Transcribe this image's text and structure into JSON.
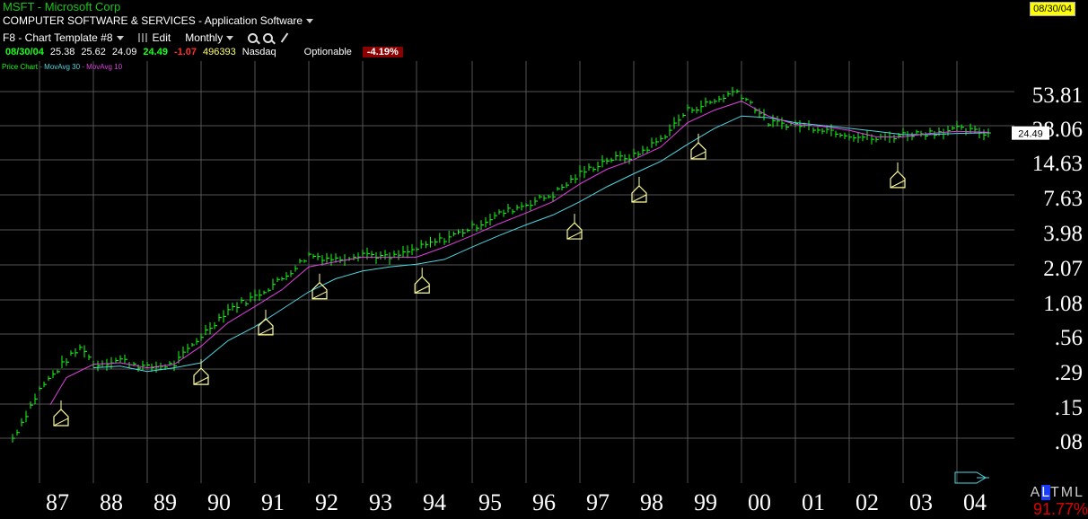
{
  "header": {
    "title": "MSFT - Microsoft Corp",
    "industry": "COMPUTER SOFTWARE & SERVICES - Application Software",
    "date_badge": "08/30/04"
  },
  "toolbar": {
    "template": "F8 - Chart Template #8",
    "edit": "Edit",
    "period": "Monthly"
  },
  "quote": {
    "date": "08/30/04",
    "open": "25.38",
    "high": "25.62",
    "low": "24.09",
    "close": "24.49",
    "change": "-1.07",
    "volume": "496393",
    "exchange": "Nasdaq",
    "optionable": "Optionable",
    "pct_change": "-4.19%"
  },
  "legend": {
    "price": "Price Chart",
    "ma30": "MovAvg 30",
    "ma10": "MovAvg 10"
  },
  "status": {
    "letters": [
      "A",
      "L",
      "T",
      "M",
      "L"
    ],
    "highlight_index": 1,
    "pct": "91.77%"
  },
  "colors": {
    "price": "#19ff19",
    "ma30": "#4fd6e0",
    "ma10": "#e040e0",
    "grid": "#555555",
    "marker": "#ffff99"
  },
  "chart_data": {
    "type": "line",
    "scale": "log",
    "title": "",
    "x_tick_labels": [
      "87",
      "88",
      "89",
      "90",
      "91",
      "92",
      "93",
      "94",
      "95",
      "96",
      "97",
      "98",
      "99",
      "00",
      "01",
      "02",
      "03",
      "04"
    ],
    "y_tick_labels": [
      "53.81",
      "28.06",
      "14.63",
      "7.63",
      "3.98",
      "2.07",
      "1.08",
      ".56",
      ".29",
      ".15",
      ".08"
    ],
    "last_price_label": "24.49",
    "series": [
      {
        "name": "Price Chart",
        "kind": "ohlc-monthly",
        "x": [
          1986.5,
          1987.0,
          1987.5,
          1987.8,
          1988.0,
          1988.5,
          1989.0,
          1989.5,
          1990.0,
          1990.5,
          1991.0,
          1991.5,
          1992.0,
          1992.5,
          1993.0,
          1993.5,
          1994.0,
          1994.5,
          1995.0,
          1995.5,
          1996.0,
          1996.5,
          1997.0,
          1997.5,
          1998.0,
          1998.5,
          1999.0,
          1999.5,
          1999.9,
          2000.2,
          2000.5,
          2001.0,
          2001.5,
          2002.0,
          2002.5,
          2003.0,
          2003.5,
          2004.0,
          2004.6
        ],
        "y": [
          0.08,
          0.2,
          0.35,
          0.45,
          0.32,
          0.35,
          0.3,
          0.32,
          0.55,
          0.9,
          1.15,
          1.6,
          2.5,
          2.3,
          2.6,
          2.35,
          2.8,
          3.4,
          4.2,
          5.4,
          6.5,
          7.8,
          11.5,
          15.0,
          16.0,
          22.0,
          38.0,
          45.0,
          55.0,
          42.0,
          30.0,
          29.0,
          27.0,
          24.0,
          22.0,
          24.0,
          25.0,
          26.5,
          24.49
        ]
      },
      {
        "name": "MovAvg 10",
        "x": [
          1987.2,
          1987.5,
          1988.0,
          1988.5,
          1989.0,
          1989.5,
          1990.0,
          1990.5,
          1991.0,
          1991.5,
          1992.0,
          1992.5,
          1993.0,
          1993.5,
          1994.0,
          1994.5,
          1995.0,
          1995.5,
          1996.0,
          1996.5,
          1997.0,
          1997.5,
          1998.0,
          1998.5,
          1999.0,
          1999.5,
          2000.0,
          2000.5,
          2001.0,
          2001.5,
          2002.0,
          2002.5,
          2003.0,
          2003.5,
          2004.0,
          2004.6
        ],
        "y": [
          0.15,
          0.25,
          0.32,
          0.33,
          0.3,
          0.32,
          0.45,
          0.7,
          0.95,
          1.3,
          2.0,
          2.2,
          2.4,
          2.4,
          2.4,
          2.9,
          3.6,
          4.5,
          5.5,
          6.8,
          9.5,
          12.5,
          15.0,
          19.0,
          30.0,
          38.0,
          45.0,
          34.0,
          29.0,
          28.0,
          26.0,
          23.0,
          23.0,
          24.5,
          25.5,
          25.0
        ]
      },
      {
        "name": "MovAvg 30",
        "x": [
          1988.0,
          1988.5,
          1989.0,
          1989.5,
          1990.0,
          1990.5,
          1991.0,
          1991.5,
          1992.0,
          1992.5,
          1993.0,
          1993.5,
          1994.0,
          1994.5,
          1995.0,
          1995.5,
          1996.0,
          1996.5,
          1997.0,
          1997.5,
          1998.0,
          1998.5,
          1999.0,
          1999.5,
          2000.0,
          2000.5,
          2001.0,
          2001.5,
          2002.0,
          2002.5,
          2003.0,
          2003.5,
          2004.0,
          2004.6
        ],
        "y": [
          0.3,
          0.31,
          0.28,
          0.3,
          0.33,
          0.5,
          0.65,
          0.9,
          1.25,
          1.6,
          1.85,
          2.0,
          2.1,
          2.3,
          2.9,
          3.6,
          4.4,
          5.3,
          6.8,
          9.0,
          11.5,
          14.5,
          20.0,
          27.0,
          34.0,
          33.0,
          30.0,
          28.5,
          27.0,
          25.5,
          24.0,
          24.0,
          24.5,
          24.8
        ]
      }
    ],
    "markers": {
      "symbol": "house",
      "x": [
        1987.4,
        1990.0,
        1991.2,
        1992.2,
        1994.1,
        1996.9,
        1998.1,
        1999.2,
        2002.9
      ],
      "y": [
        0.12,
        0.26,
        0.66,
        1.3,
        1.45,
        4.0,
        8.0,
        18.0,
        10.5
      ]
    }
  }
}
